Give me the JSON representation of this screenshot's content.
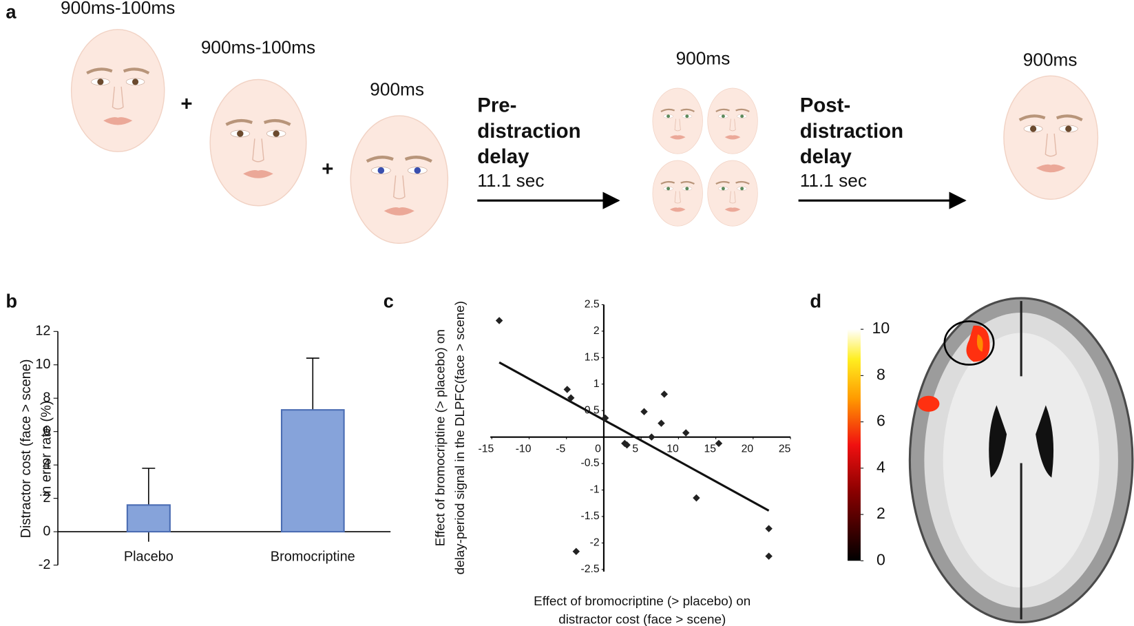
{
  "panel_a": {
    "label": "a",
    "stimuli": [
      {
        "duration": "900ms-100ms"
      },
      {
        "duration": "900ms-100ms"
      },
      {
        "duration": "900ms"
      }
    ],
    "plus": [
      "+",
      "+"
    ],
    "delays": [
      {
        "lines": [
          "Pre-",
          "distraction",
          "delay"
        ],
        "time": "11.1 sec"
      },
      {
        "lines": [
          "Post-",
          "distraction",
          "delay"
        ],
        "time": "11.1 sec"
      }
    ],
    "distractor_duration": "900ms",
    "probe_duration": "900ms"
  },
  "chart_data": [
    {
      "type": "bar",
      "panel_label": "b",
      "categories": [
        "Placebo",
        "Bromocriptine"
      ],
      "values": [
        1.6,
        7.3
      ],
      "errors": [
        2.2,
        3.1
      ],
      "color": "#86a3da",
      "ylim": [
        -2,
        12
      ],
      "yticks": [
        -2,
        0,
        2,
        4,
        6,
        8,
        10,
        12
      ],
      "ylabel": [
        "Distractor cost (face > scene)",
        "in error rate (%)"
      ]
    },
    {
      "type": "scatter",
      "panel_label": "c",
      "x": [
        -14,
        -4.9,
        -4.4,
        0.2,
        2.8,
        3.1,
        5.4,
        6.4,
        7.7,
        8.1,
        11,
        12.4,
        15.4,
        22.1,
        22.1,
        -3.7
      ],
      "y": [
        2.2,
        0.9,
        0.74,
        0.36,
        -0.12,
        -0.15,
        0.48,
        0,
        0.26,
        0.81,
        0.08,
        -1.15,
        -0.12,
        -1.73,
        -2.25,
        -2.16
      ],
      "color": "#222222",
      "trendline": {
        "x": [
          -14,
          22.1
        ],
        "y": [
          1.41,
          -1.39
        ]
      },
      "xlim": [
        -15,
        25
      ],
      "ylim": [
        -2.5,
        2.5
      ],
      "xticks": [
        -15,
        -10,
        -5,
        0,
        5,
        10,
        15,
        20,
        25
      ],
      "yticks": [
        2.5,
        2,
        1.5,
        1,
        0.5,
        -0.5,
        -1,
        -1.5,
        -2,
        -2.5
      ],
      "xlabel": [
        "Effect of bromocriptine (> placebo) on",
        "distractor cost (face > scene)"
      ],
      "ylabel": [
        "Effect of bromocriptine (> placebo) on",
        "delay-period signal in the DLPFC(face > scene)"
      ]
    }
  ],
  "panel_d": {
    "label": "d",
    "colorbar": {
      "range": [
        0,
        10
      ],
      "ticks": [
        0,
        2,
        4,
        6,
        8,
        10
      ]
    }
  }
}
